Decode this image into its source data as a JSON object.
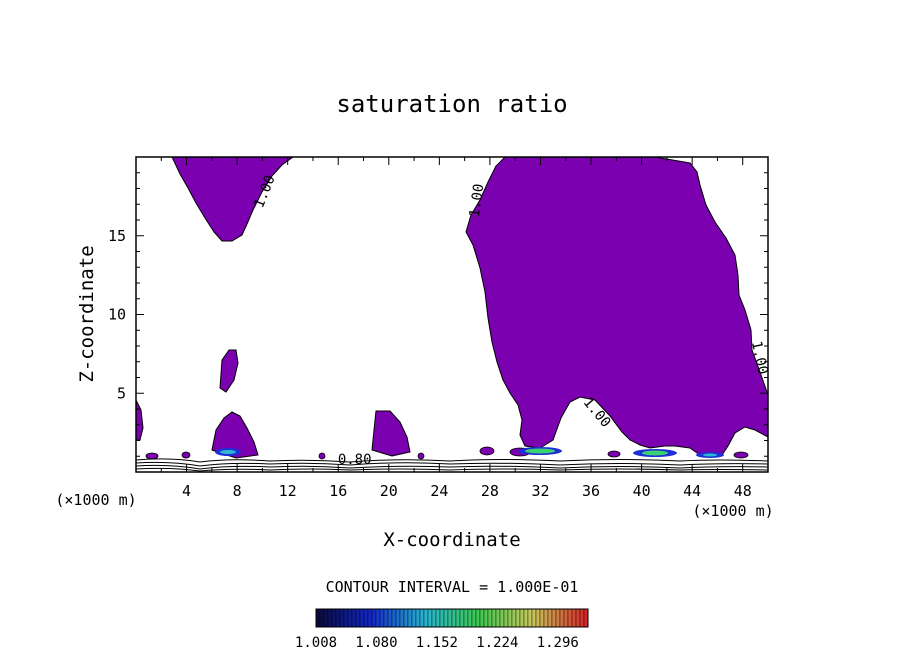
{
  "chart_data": {
    "type": "heatmap",
    "title": "saturation ratio",
    "xlabel": "X-coordinate",
    "ylabel": "Z-coordinate",
    "x_unit_left": "(×1000 m)",
    "x_unit_right": "(×1000 m)",
    "xlim": [
      0,
      50
    ],
    "ylim": [
      0,
      20
    ],
    "x_ticks": [
      4,
      8,
      12,
      16,
      20,
      24,
      28,
      32,
      36,
      40,
      44,
      48
    ],
    "y_ticks": [
      5,
      10,
      15
    ],
    "contour_labels": [
      {
        "text": "1.00",
        "x": 10.5,
        "y": 17.7,
        "angle": -68
      },
      {
        "text": "1.00",
        "x": 27.3,
        "y": 17.2,
        "angle": -82
      },
      {
        "text": "1.00",
        "x": 49.0,
        "y": 7.2,
        "angle": 78
      },
      {
        "text": "1.00",
        "x": 36.2,
        "y": 3.6,
        "angle": 50
      },
      {
        "text": "0.80",
        "x": 17.3,
        "y": 0.5,
        "angle": 0
      }
    ],
    "contour_interval_text": "CONTOUR INTERVAL = 1.000E-01",
    "colorbar": {
      "labels": [
        "1.008",
        "1.080",
        "1.152",
        "1.224",
        "1.296"
      ],
      "range": [
        1.008,
        1.332
      ]
    },
    "fill_color": "#7b00b0"
  }
}
